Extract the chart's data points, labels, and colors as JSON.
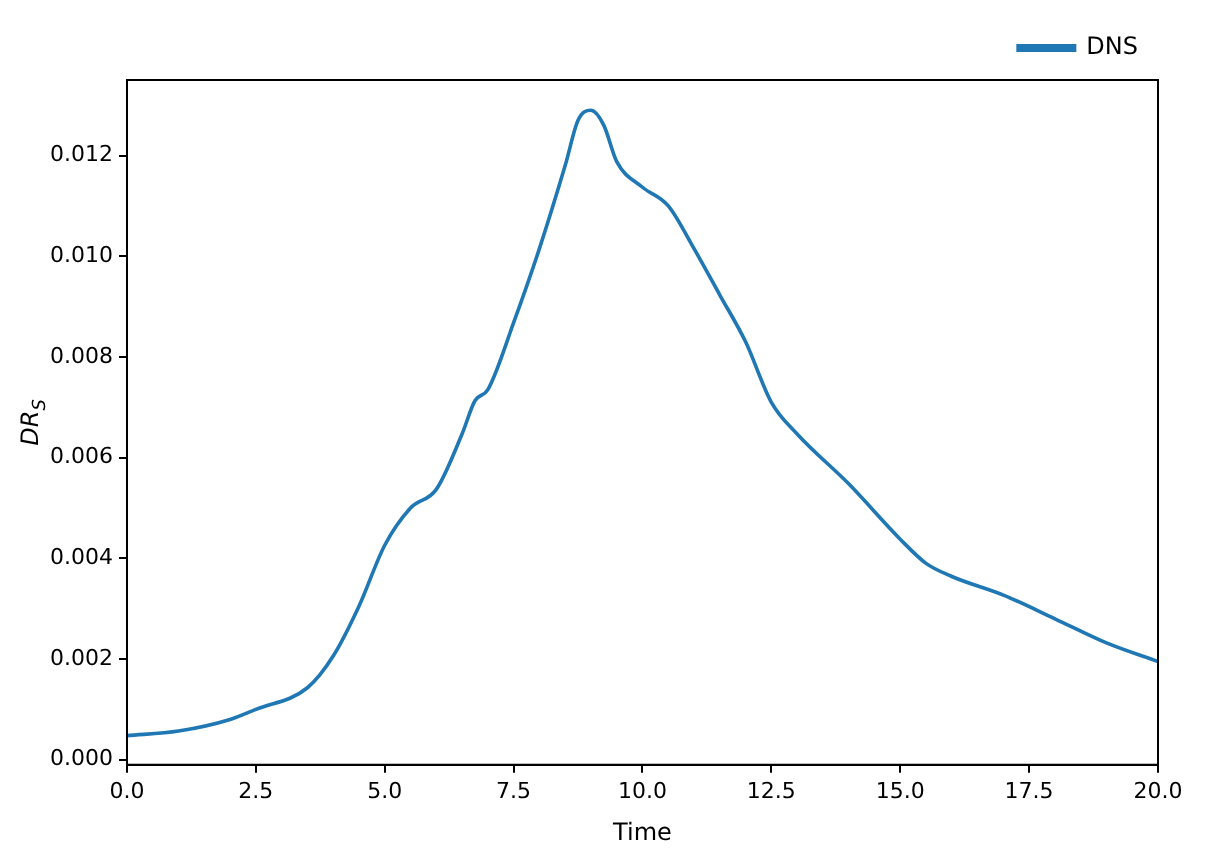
{
  "chart_data": {
    "type": "line",
    "xlabel": "Time",
    "ylabel": "DR$_{S}$",
    "x": [
      0,
      1,
      2,
      2.5,
      3.5,
      4,
      4.5,
      5,
      5.5,
      6,
      6.5,
      6.75,
      7,
      7.5,
      8,
      8.5,
      8.75,
      9,
      9.25,
      9.5,
      10,
      10.5,
      11,
      11.5,
      12,
      12.5,
      13,
      14,
      15,
      15.5,
      16,
      17,
      18,
      19,
      20
    ],
    "series": [
      {
        "name": "DNS",
        "color": "#1f77b4",
        "values": [
          0.00048,
          0.00057,
          0.0008,
          0.001,
          0.00143,
          0.00206,
          0.00305,
          0.00426,
          0.005,
          0.00537,
          0.00647,
          0.00713,
          0.00735,
          0.00868,
          0.01015,
          0.0118,
          0.0127,
          0.0129,
          0.0126,
          0.01188,
          0.01137,
          0.011,
          0.01015,
          0.00923,
          0.0083,
          0.0071,
          0.00647,
          0.00548,
          0.00438,
          0.0039,
          0.00364,
          0.00327,
          0.0028,
          0.00232,
          0.00195
        ]
      }
    ],
    "xlim": [
      0,
      20
    ],
    "ylim": [
      -0.0001,
      0.0135
    ],
    "xticks": [
      {
        "value": 0,
        "label": "0.0"
      },
      {
        "value": 2.5,
        "label": "2.5"
      },
      {
        "value": 5,
        "label": "5.0"
      },
      {
        "value": 7.5,
        "label": "7.5"
      },
      {
        "value": 10,
        "label": "10.0"
      },
      {
        "value": 12.5,
        "label": "12.5"
      },
      {
        "value": 15,
        "label": "15.0"
      },
      {
        "value": 17.5,
        "label": "17.5"
      },
      {
        "value": 20,
        "label": "20.0"
      }
    ],
    "yticks": [
      {
        "value": 0,
        "label": "0.000"
      },
      {
        "value": 0.002,
        "label": "0.002"
      },
      {
        "value": 0.004,
        "label": "0.004"
      },
      {
        "value": 0.006,
        "label": "0.006"
      },
      {
        "value": 0.008,
        "label": "0.008"
      },
      {
        "value": 0.01,
        "label": "0.010"
      },
      {
        "value": 0.012,
        "label": "0.012"
      }
    ],
    "grid": false,
    "legend": "top right",
    "marker": "none",
    "line_style": "solid"
  }
}
